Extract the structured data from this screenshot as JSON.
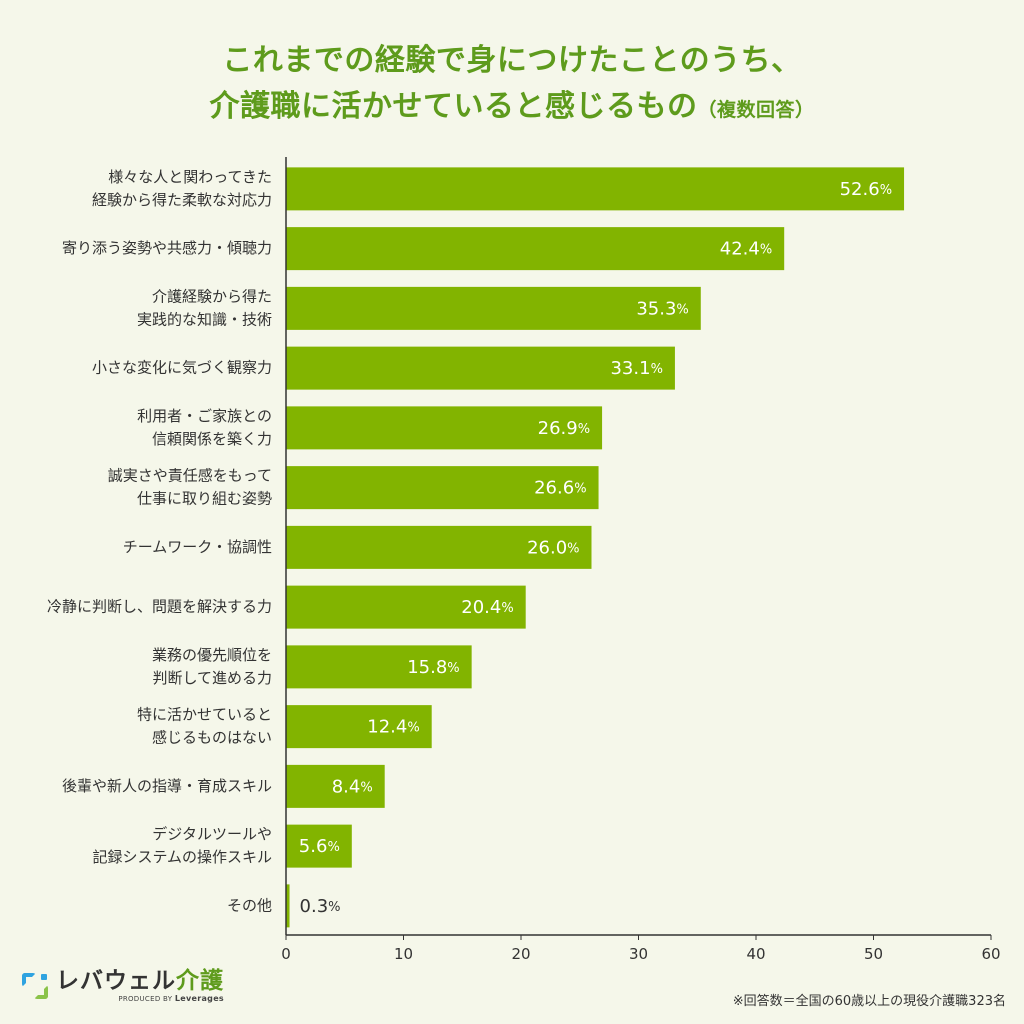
{
  "title": {
    "line1": "これまでの経験で身につけたことのうち、",
    "line2": "介護職に活かせていると感じるもの",
    "suffix": "（複数回答）"
  },
  "chart_data": {
    "type": "bar",
    "orientation": "horizontal",
    "categories": [
      [
        "様々な人と関わってきた",
        "経験から得た柔軟な対応力"
      ],
      [
        "寄り添う姿勢や共感力・傾聴力"
      ],
      [
        "介護経験から得た",
        "実践的な知識・技術"
      ],
      [
        "小さな変化に気づく観察力"
      ],
      [
        "利用者・ご家族との",
        "信頼関係を築く力"
      ],
      [
        "誠実さや責任感をもって",
        "仕事に取り組む姿勢"
      ],
      [
        "チームワーク・協調性"
      ],
      [
        "冷静に判断し、問題を解決する力"
      ],
      [
        "業務の優先順位を",
        "判断して進める力"
      ],
      [
        "特に活かせていると",
        "感じるものはない"
      ],
      [
        "後輩や新人の指導・育成スキル"
      ],
      [
        "デジタルツールや",
        "記録システムの操作スキル"
      ],
      [
        "その他"
      ]
    ],
    "values": [
      52.6,
      42.4,
      35.3,
      33.1,
      26.9,
      26.6,
      26.0,
      20.4,
      15.8,
      12.4,
      8.4,
      5.6,
      0.3
    ],
    "value_labels": [
      "52.6",
      "42.4",
      "35.3",
      "33.1",
      "26.9",
      "26.6",
      "26.0",
      "20.4",
      "15.8",
      "12.4",
      "8.4",
      "5.6",
      "0.3"
    ],
    "unit": "%",
    "xlim": [
      0,
      60
    ],
    "xticks": [
      "0",
      "10",
      "20",
      "30",
      "40",
      "50",
      "60"
    ],
    "bar_color": "#82b400",
    "grid": false
  },
  "footer": {
    "logo_main": "レバウェル",
    "logo_accent": "介護",
    "logo_sub_prefix": "PRODUCED BY",
    "logo_sub_brand": "Leverages",
    "note": "※回答数＝全国の60歳以上の現役介護職323名"
  }
}
